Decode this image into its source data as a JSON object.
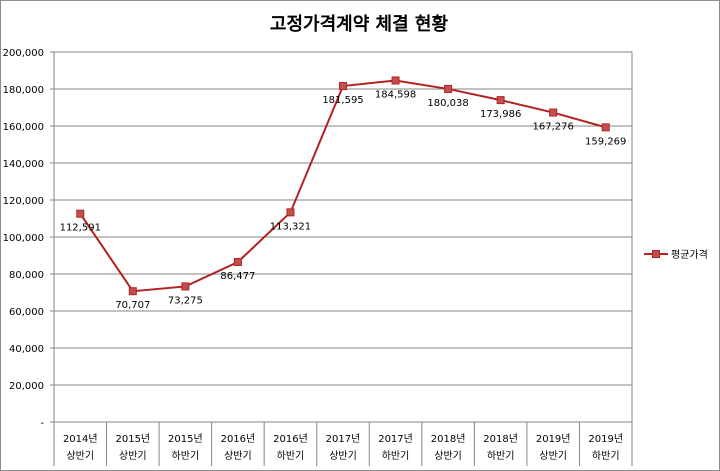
{
  "chart_data": {
    "type": "line",
    "title": "고정가격계약 체결 현황",
    "categories": [
      [
        "2014년",
        "상반기"
      ],
      [
        "2015년",
        "상반기"
      ],
      [
        "2015년",
        "하반기"
      ],
      [
        "2016년",
        "상반기"
      ],
      [
        "2016년",
        "하반기"
      ],
      [
        "2017년",
        "상반기"
      ],
      [
        "2017년",
        "하반기"
      ],
      [
        "2018년",
        "상반기"
      ],
      [
        "2018년",
        "하반기"
      ],
      [
        "2019년",
        "상반기"
      ],
      [
        "2019년",
        "하반기"
      ]
    ],
    "series": [
      {
        "name": "평균가격",
        "values": [
          112591,
          70707,
          73275,
          86477,
          113321,
          181595,
          184598,
          180038,
          173986,
          167276,
          159269
        ],
        "labels": [
          "112,591",
          "70,707",
          "73,275",
          "86,477",
          "113,321",
          "181,595",
          "184,598",
          "180,038",
          "173,986",
          "167,276",
          "159,269"
        ],
        "color": "#b22222",
        "marker_color": "#c0504d"
      }
    ],
    "ylim": [
      0,
      200000
    ],
    "yticks": [
      "-",
      "20,000",
      "40,000",
      "60,000",
      "80,000",
      "100,000",
      "120,000",
      "140,000",
      "160,000",
      "180,000",
      "200,000"
    ],
    "grid": true,
    "legend": "right"
  }
}
